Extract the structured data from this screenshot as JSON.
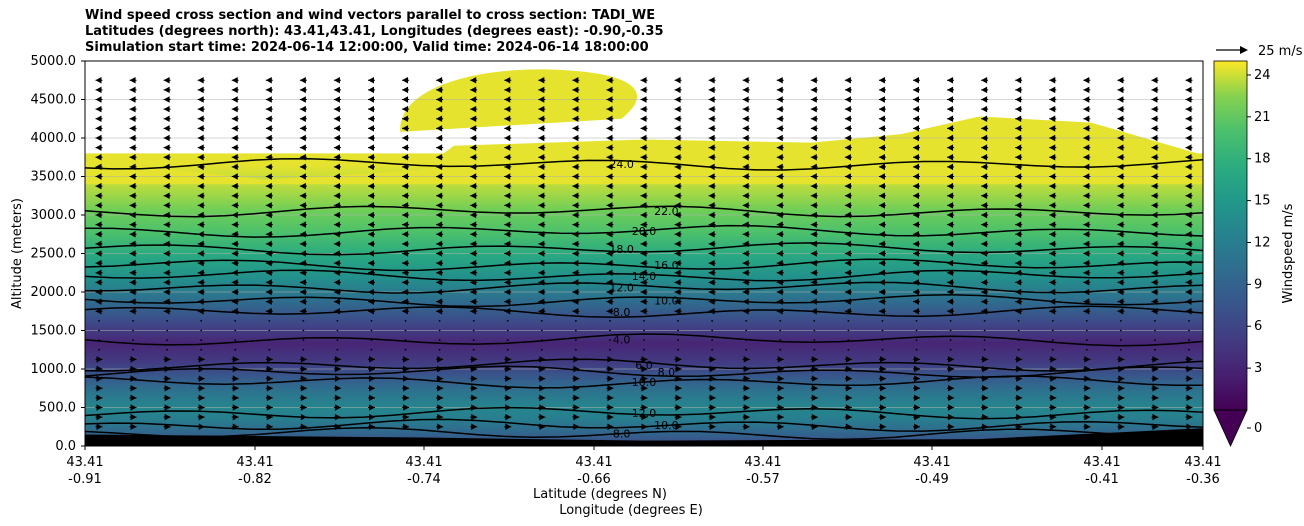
{
  "chart_data": {
    "type": "heatmap",
    "title_lines": [
      "Wind speed cross section and wind vectors parallel to cross section: TADI_WE",
      "Latitudes (degrees north): 43.41,43.41, Longitudes (degrees east): -0.90,-0.35",
      "Simulation start time: 2024-06-14 12:00:00, Valid time: 2024-06-14 18:00:00"
    ],
    "xlabel": "Latitude (degrees N)",
    "xlabel2": "Longitude (degrees E)",
    "ylabel": "Altitude (meters)",
    "ylim": [
      0,
      5000
    ],
    "y_ticks": [
      "0.0",
      "500.0",
      "1000.0",
      "1500.0",
      "2000.0",
      "2500.0",
      "3000.0",
      "3500.0",
      "4000.0",
      "4500.0",
      "5000.0"
    ],
    "x_ticks": [
      {
        "lat": "43.41",
        "lon": "-0.91"
      },
      {
        "lat": "43.41",
        "lon": "-0.82"
      },
      {
        "lat": "43.41",
        "lon": "-0.74"
      },
      {
        "lat": "43.41",
        "lon": "-0.66"
      },
      {
        "lat": "43.41",
        "lon": "-0.57"
      },
      {
        "lat": "43.41",
        "lon": "-0.49"
      },
      {
        "lat": "43.41",
        "lon": "-0.41"
      },
      {
        "lat": "43.41",
        "lon": "-0.36"
      }
    ],
    "colorbar": {
      "label": "Windspeed m/s",
      "range": [
        0,
        25
      ],
      "ticks": [
        "0",
        "3",
        "6",
        "9",
        "12",
        "15",
        "18",
        "21",
        "24"
      ]
    },
    "quiver_key": "25 m/s",
    "speed_profile": [
      {
        "alt": 0,
        "speed": 6
      },
      {
        "alt": 150,
        "speed": 9
      },
      {
        "alt": 350,
        "speed": 12
      },
      {
        "alt": 500,
        "speed": 13
      },
      {
        "alt": 700,
        "speed": 11
      },
      {
        "alt": 900,
        "speed": 8
      },
      {
        "alt": 1100,
        "speed": 5
      },
      {
        "alt": 1350,
        "speed": 3
      },
      {
        "alt": 1600,
        "speed": 6
      },
      {
        "alt": 1900,
        "speed": 10
      },
      {
        "alt": 2200,
        "speed": 14
      },
      {
        "alt": 2500,
        "speed": 17
      },
      {
        "alt": 2800,
        "speed": 20
      },
      {
        "alt": 3100,
        "speed": 22
      },
      {
        "alt": 3400,
        "speed": 23.5
      },
      {
        "alt": 3700,
        "speed": 24.5
      }
    ],
    "contours": [
      {
        "level": "4.0",
        "alt": 1380
      },
      {
        "level": "6.0",
        "alt": 1050
      },
      {
        "level": "8.0",
        "alt": 960
      },
      {
        "level": "8.0",
        "alt": 1740
      },
      {
        "level": "10.0",
        "alt": 830
      },
      {
        "level": "10.0",
        "alt": 1890
      },
      {
        "level": "12.0",
        "alt": 2060
      },
      {
        "level": "12.0",
        "alt": 430
      },
      {
        "level": "10.0",
        "alt": 270
      },
      {
        "level": "8.0",
        "alt": 160
      },
      {
        "level": "14.0",
        "alt": 2210
      },
      {
        "level": "16.0",
        "alt": 2350
      },
      {
        "level": "18.0",
        "alt": 2560
      },
      {
        "level": "20.0",
        "alt": 2790
      },
      {
        "level": "22.0",
        "alt": 3050
      },
      {
        "level": "24.0",
        "alt": 3660
      }
    ]
  }
}
